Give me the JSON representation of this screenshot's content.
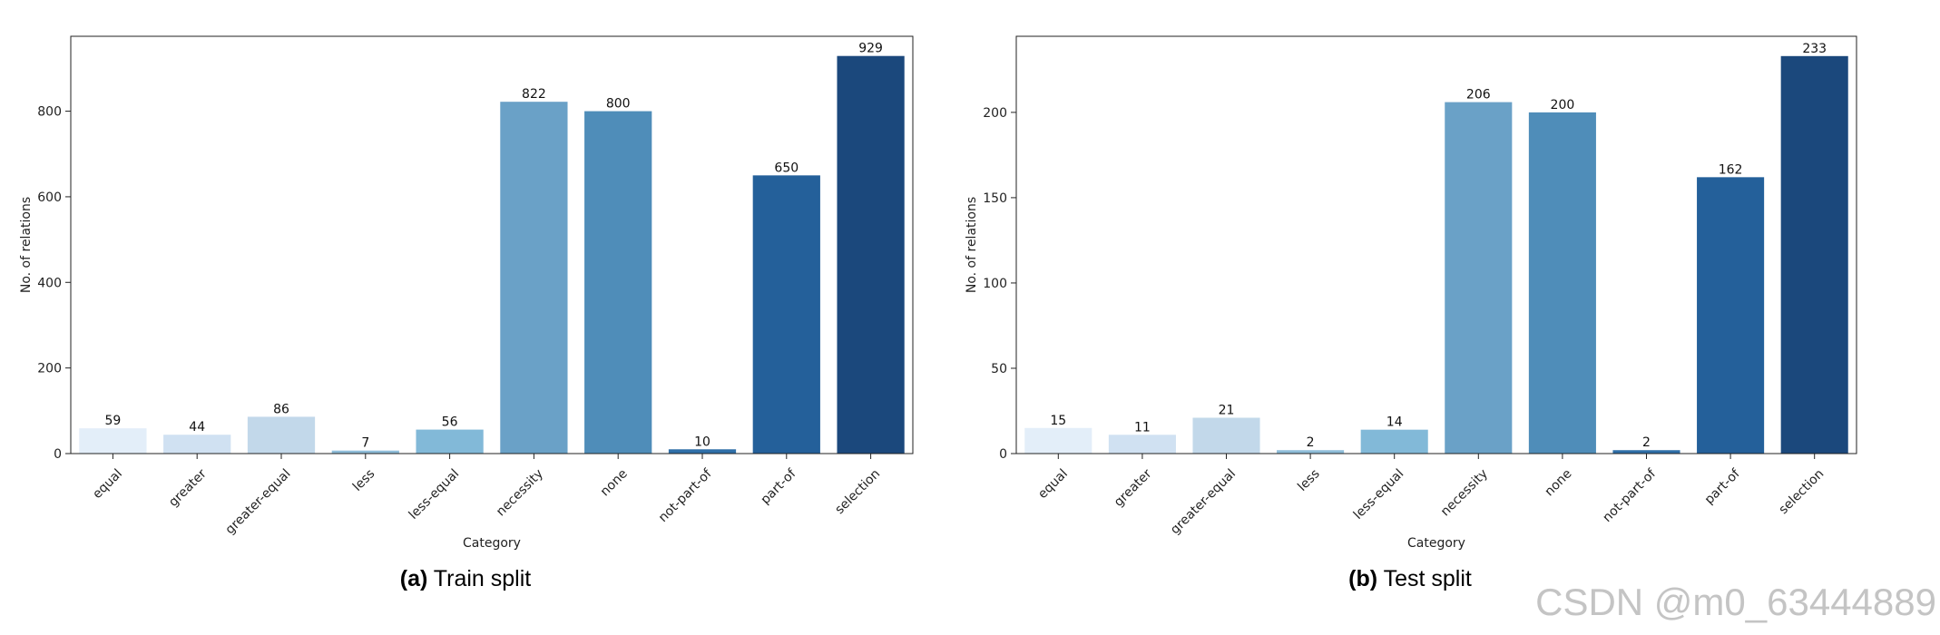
{
  "chart_data": [
    {
      "type": "bar",
      "caption_tag": "(a)",
      "caption_text": "Train split",
      "xlabel": "Category",
      "ylabel": "No. of relations",
      "categories": [
        "equal",
        "greater",
        "greater-equal",
        "less",
        "less-equal",
        "necessity",
        "none",
        "not-part-of",
        "part-of",
        "selection"
      ],
      "values": [
        59,
        44,
        86,
        7,
        56,
        822,
        800,
        10,
        650,
        929
      ],
      "ylim": [
        0,
        975
      ],
      "yticks": [
        0,
        200,
        400,
        600,
        800
      ],
      "legend": "none",
      "grid": false
    },
    {
      "type": "bar",
      "caption_tag": "(b)",
      "caption_text": "Test split",
      "xlabel": "Category",
      "ylabel": "No. of relations",
      "categories": [
        "equal",
        "greater",
        "greater-equal",
        "less",
        "less-equal",
        "necessity",
        "none",
        "not-part-of",
        "part-of",
        "selection"
      ],
      "values": [
        15,
        11,
        21,
        2,
        14,
        206,
        200,
        2,
        162,
        233
      ],
      "ylim": [
        0,
        244.6
      ],
      "yticks": [
        0,
        50,
        100,
        150,
        200
      ],
      "legend": "none",
      "grid": false
    }
  ],
  "palette": [
    "#e3eef9",
    "#d0e1f2",
    "#c2d8ea",
    "#8fbdd9",
    "#82b9d8",
    "#6aa1c7",
    "#4f8db9",
    "#2f6fa8",
    "#24609a",
    "#1b487c"
  ],
  "watermark": "CSDN @m0_63444889"
}
